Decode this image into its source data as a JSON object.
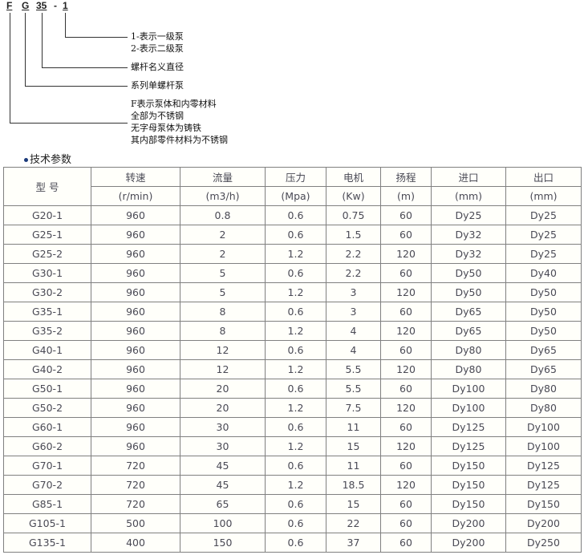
{
  "code": {
    "parts": [
      "F",
      "G",
      "35",
      "1"
    ],
    "sep": "-"
  },
  "notes": {
    "stage": [
      "1-表示一级泵",
      "2-表示二级泵"
    ],
    "diameter": "螺杆名义直径",
    "series": "系列单螺杆泵",
    "material": [
      "F表示泵体和内零材料",
      "全部为不锈钢",
      "无字母泵体为铸铁",
      "其内部零件材料为不锈钢"
    ]
  },
  "section_title": "技术参数",
  "table": {
    "headers": [
      [
        "型 号",
        ""
      ],
      [
        "转速",
        "(r/min)"
      ],
      [
        "流量",
        "(m3/h)"
      ],
      [
        "压力",
        "(Mpa)"
      ],
      [
        "电机",
        "(Kw)"
      ],
      [
        "扬程",
        "(m)"
      ],
      [
        "进口",
        "(mm)"
      ],
      [
        "出口",
        "(mm)"
      ]
    ],
    "rows": [
      [
        "G20-1",
        "960",
        "0.8",
        "0.6",
        "0.75",
        "60",
        "Dy25",
        "Dy25"
      ],
      [
        "G25-1",
        "960",
        "2",
        "0.6",
        "1.5",
        "60",
        "Dy32",
        "Dy25"
      ],
      [
        "G25-2",
        "960",
        "2",
        "1.2",
        "2.2",
        "120",
        "Dy32",
        "Dy25"
      ],
      [
        "G30-1",
        "960",
        "5",
        "0.6",
        "2.2",
        "60",
        "Dy50",
        "Dy40"
      ],
      [
        "G30-2",
        "960",
        "5",
        "1.2",
        "3",
        "120",
        "Dy50",
        "Dy50"
      ],
      [
        "G35-1",
        "960",
        "8",
        "0.6",
        "3",
        "60",
        "Dy65",
        "Dy50"
      ],
      [
        "G35-2",
        "960",
        "8",
        "1.2",
        "4",
        "120",
        "Dy65",
        "Dy50"
      ],
      [
        "G40-1",
        "960",
        "12",
        "0.6",
        "4",
        "60",
        "Dy80",
        "Dy65"
      ],
      [
        "G40-2",
        "960",
        "12",
        "1.2",
        "5.5",
        "120",
        "Dy80",
        "Dy65"
      ],
      [
        "G50-1",
        "960",
        "20",
        "0.6",
        "5.5",
        "60",
        "Dy100",
        "Dy80"
      ],
      [
        "G50-2",
        "960",
        "20",
        "1.2",
        "7.5",
        "120",
        "Dy100",
        "Dy80"
      ],
      [
        "G60-1",
        "960",
        "30",
        "0.6",
        "11",
        "60",
        "Dy125",
        "Dy100"
      ],
      [
        "G60-2",
        "960",
        "30",
        "1.2",
        "15",
        "120",
        "Dy125",
        "Dy100"
      ],
      [
        "G70-1",
        "720",
        "45",
        "0.6",
        "11",
        "60",
        "Dy150",
        "Dy125"
      ],
      [
        "G70-2",
        "720",
        "45",
        "1.2",
        "18.5",
        "120",
        "Dy150",
        "Dy125"
      ],
      [
        "G85-1",
        "720",
        "65",
        "0.6",
        "15",
        "60",
        "Dy150",
        "Dy150"
      ],
      [
        "G105-1",
        "500",
        "100",
        "0.6",
        "22",
        "60",
        "Dy200",
        "Dy200"
      ],
      [
        "G135-1",
        "400",
        "150",
        "0.6",
        "37",
        "60",
        "Dy200",
        "Dy250"
      ]
    ]
  }
}
